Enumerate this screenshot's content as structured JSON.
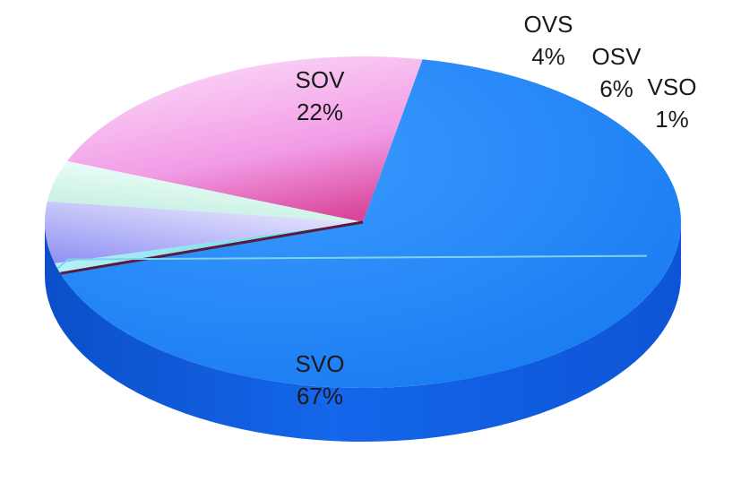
{
  "chart_data": {
    "type": "pie",
    "style": "3d",
    "legend": "none",
    "slices": [
      {
        "label": "SVO",
        "value": 67,
        "value_label": "67%",
        "color": "#1a82f7",
        "shade": "#0f56c8"
      },
      {
        "label": "SOV",
        "value": 22,
        "value_label": "22%",
        "color": "#f2a3ec",
        "shade": "#d9479b"
      },
      {
        "label": "OVS",
        "value": 4,
        "value_label": "4%",
        "color": "#dff7f3",
        "shade": "#a9e6da"
      },
      {
        "label": "OSV",
        "value": 6,
        "value_label": "6%",
        "color": "#dcd9fb",
        "shade": "#8f93f0"
      },
      {
        "label": "VSO",
        "value": 1,
        "value_label": "1%",
        "color": "#8fe6f5",
        "shade": "#3cbfd8"
      }
    ]
  }
}
